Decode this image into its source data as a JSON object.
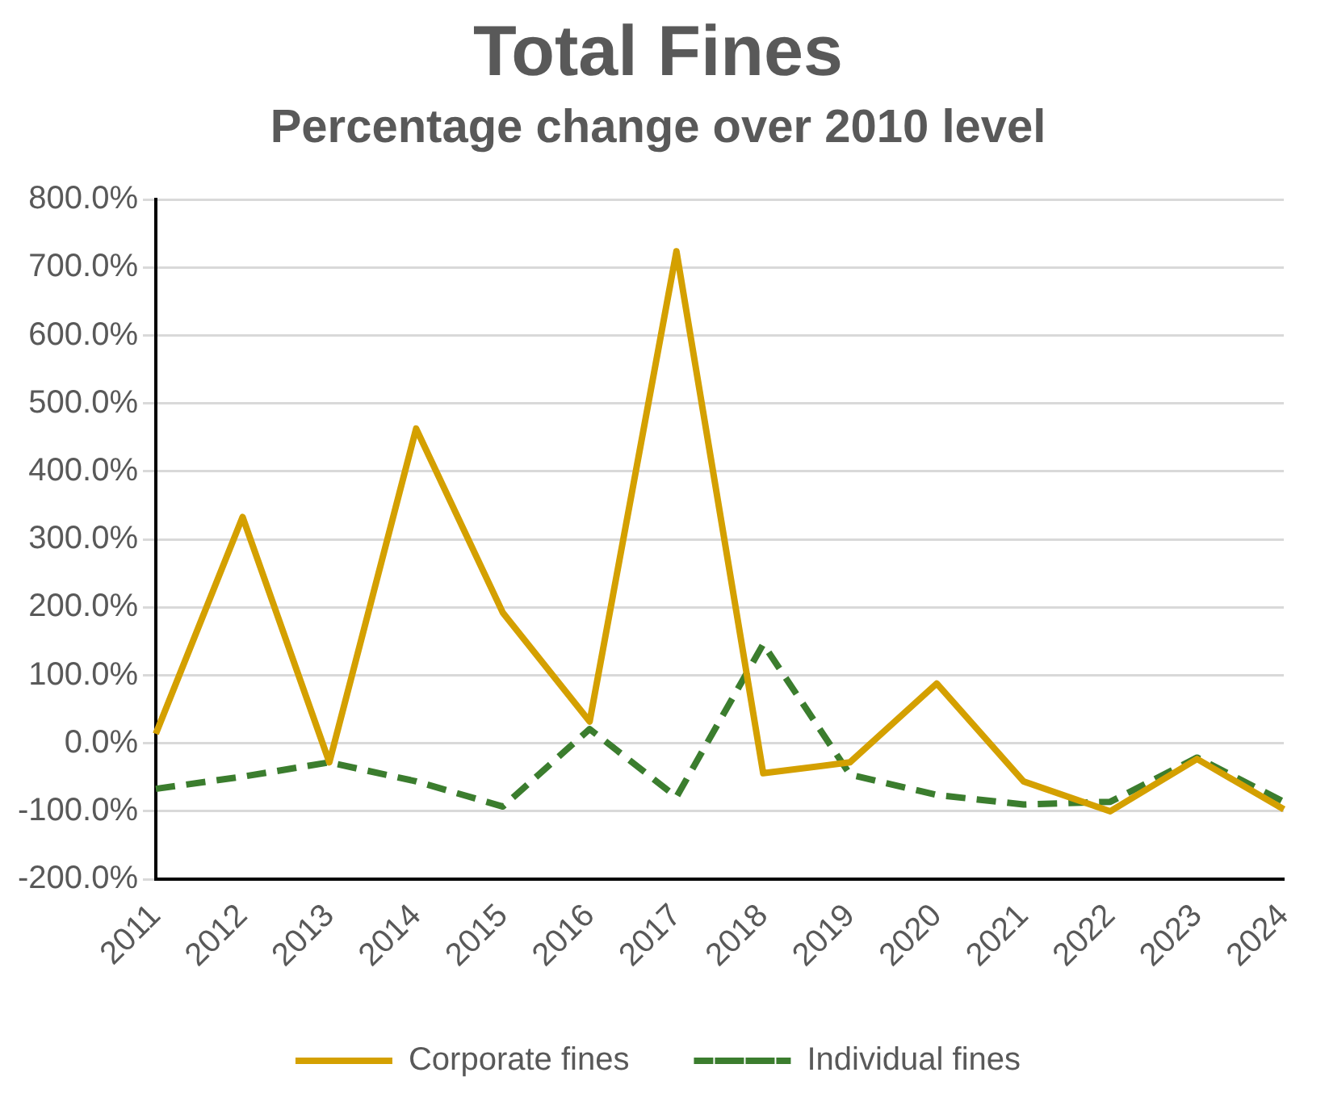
{
  "chart_data": {
    "type": "line",
    "title": "Total Fines",
    "subtitle": "Percentage change over 2010 level",
    "categories": [
      "2011",
      "2012",
      "2013",
      "2014",
      "2015",
      "2016",
      "2017",
      "2018",
      "2019",
      "2020",
      "2021",
      "2022",
      "2023",
      "2024"
    ],
    "series": [
      {
        "name": "Corporate fines",
        "color": "#d4a000",
        "line_style": "solid",
        "values": [
          14,
          333,
          -28,
          463,
          192,
          32,
          724,
          -44,
          -28,
          88,
          -56,
          -100,
          -23,
          -97
        ]
      },
      {
        "name": "Individual fines",
        "color": "#3b7d2e",
        "line_style": "dashed",
        "values": [
          -67,
          -49,
          -28,
          -56,
          -93,
          21,
          -79,
          146,
          -46,
          -76,
          -90,
          -86,
          -21,
          -86
        ]
      }
    ],
    "ylim": [
      -200,
      800
    ],
    "yticks": [
      {
        "value": -200,
        "label": "-200.0%"
      },
      {
        "value": -100,
        "label": "-100.0%"
      },
      {
        "value": 0,
        "label": "0.0%"
      },
      {
        "value": 100,
        "label": "100.0%"
      },
      {
        "value": 200,
        "label": "200.0%"
      },
      {
        "value": 300,
        "label": "300.0%"
      },
      {
        "value": 400,
        "label": "400.0%"
      },
      {
        "value": 500,
        "label": "500.0%"
      },
      {
        "value": 600,
        "label": "600.0%"
      },
      {
        "value": 700,
        "label": "700.0%"
      },
      {
        "value": 800,
        "label": "800.0%"
      }
    ],
    "grid": "y",
    "legend": "bottom",
    "marker": "none"
  }
}
